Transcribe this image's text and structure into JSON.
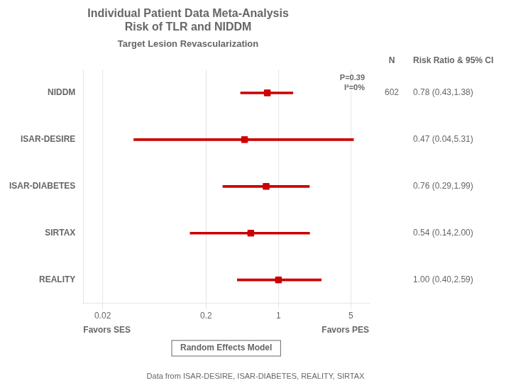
{
  "chart_data": {
    "type": "forest",
    "title": [
      "Individual Patient Data Meta-Analysis",
      "Risk of TLR and NIDDM"
    ],
    "subtitle": "Target Lesion Revascularization",
    "xlabel": [
      "Favors SES",
      "Favors PES"
    ],
    "categories": [
      "NIDDM",
      "ISAR-DESIRE",
      "ISAR-DIABETES",
      "SIRTAX",
      "REALITY"
    ],
    "values": [
      0.78,
      0.47,
      0.76,
      0.54,
      1.0
    ],
    "value_labels": [
      "0.78 (0.43,1.38)",
      "0.47 (0.04,5.31)",
      "0.76 (0.29,1.99)",
      "0.54 (0.14,2.00)",
      "1.00 (0.40,2.59)"
    ],
    "ci_low": [
      0.43,
      0.04,
      0.29,
      0.14,
      0.4
    ],
    "ci_high": [
      1.38,
      5.31,
      1.99,
      2.0,
      2.59
    ],
    "n": [
      602,
      null,
      null,
      null,
      null
    ],
    "columns": [
      "N",
      "Risk Ratio & 95% CI"
    ],
    "annotations": [
      "P=0.39\nI²=0%",
      "Random Effects Model",
      "Data from ISAR-DESIRE, ISAR-DIABETES, REALITY, SIRTAX"
    ],
    "log": "x",
    "xlim": [
      0.013,
      7.5
    ],
    "xticks": [
      0.02,
      0.2,
      1,
      5
    ],
    "grid": true,
    "color": "#cc0000",
    "marker": "square"
  }
}
